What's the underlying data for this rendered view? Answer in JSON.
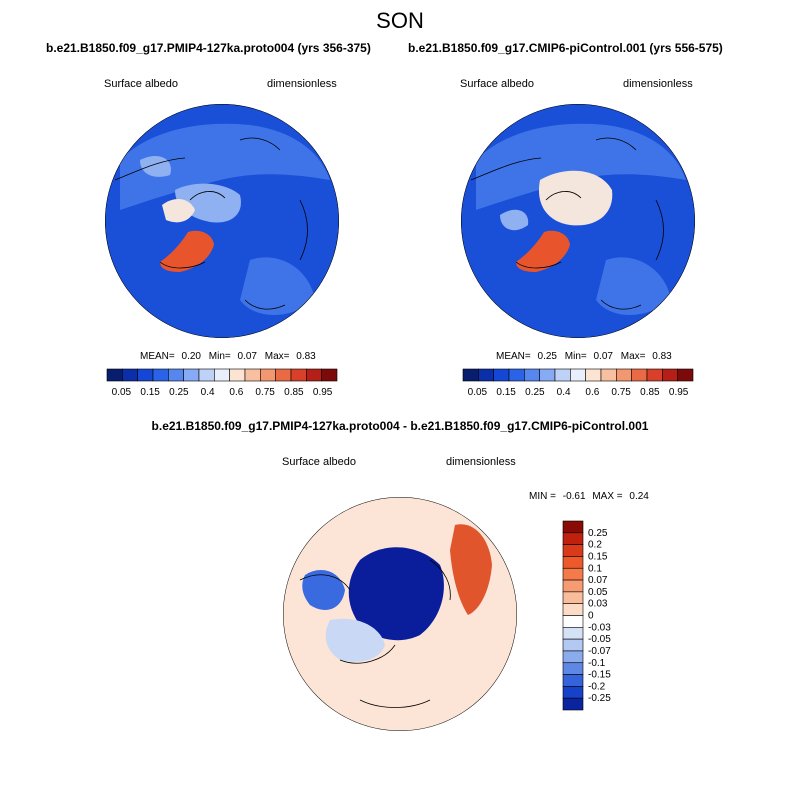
{
  "season": "SON",
  "panels": [
    {
      "case": "b.e21.B1850.f09_g17.PMIP4-127ka.proto004 (yrs 356-375)",
      "variable": "Surface albedo",
      "units": "dimensionless",
      "stats_mean_label": "MEAN=",
      "stats_mean": "0.20",
      "stats_min_label": "Min=",
      "stats_min": "0.07",
      "stats_max_label": "Max=",
      "stats_max": "0.83"
    },
    {
      "case": "b.e21.B1850.f09_g17.CMIP6-piControl.001 (yrs 556-575)",
      "variable": "Surface albedo",
      "units": "dimensionless",
      "stats_mean_label": "MEAN=",
      "stats_mean": "0.25",
      "stats_min_label": "Min=",
      "stats_min": "0.07",
      "stats_max_label": "Max=",
      "stats_max": "0.83"
    }
  ],
  "colorbar_top": {
    "labels": [
      "0.05",
      "0.15",
      "0.25",
      "0.4",
      "0.6",
      "0.75",
      "0.85",
      "0.95"
    ],
    "colors": [
      "#081d6e",
      "#0b2fa8",
      "#1447d6",
      "#2a63e8",
      "#5587ee",
      "#86aaf3",
      "#bed2f8",
      "#e9f0fb",
      "#fce3d2",
      "#f8bfa0",
      "#f29770",
      "#ea6a44",
      "#d8402a",
      "#b51f18",
      "#7d0a0a"
    ]
  },
  "diff_panel": {
    "case": "b.e21.B1850.f09_g17.PMIP4-127ka.proto004 - b.e21.B1850.f09_g17.CMIP6-piControl.001",
    "variable": "Surface albedo",
    "units": "dimensionless",
    "min_label": "MIN =",
    "min": "-0.61",
    "max_label": "MAX =",
    "max": "0.24"
  },
  "colorbar_diff": {
    "labels": [
      "0.25",
      "0.2",
      "0.15",
      "0.1",
      "0.07",
      "0.05",
      "0.03",
      "0",
      "-0.03",
      "-0.05",
      "-0.07",
      "-0.1",
      "-0.15",
      "-0.2",
      "-0.25"
    ],
    "colors": [
      "#8a0a06",
      "#c0200e",
      "#d93a1a",
      "#ec5a2c",
      "#f47a4a",
      "#f79c72",
      "#f9bd9c",
      "#fcdcc6",
      "#ffffff",
      "#d5e2f6",
      "#b3c9f2",
      "#8aaced",
      "#5f88e6",
      "#3563dc",
      "#1642c8",
      "#0a24a0"
    ]
  },
  "map_colors": {
    "ocean_blue": "#1a4fd8",
    "mid_blue": "#3f74e8",
    "light_blue": "#8fb1f2",
    "pale": "#f4e6dc",
    "greenland_orange": "#e8552c",
    "diff_background": "#fce5d6",
    "diff_ice_blue": "#0a1e9c",
    "diff_red": "#e0552c"
  }
}
